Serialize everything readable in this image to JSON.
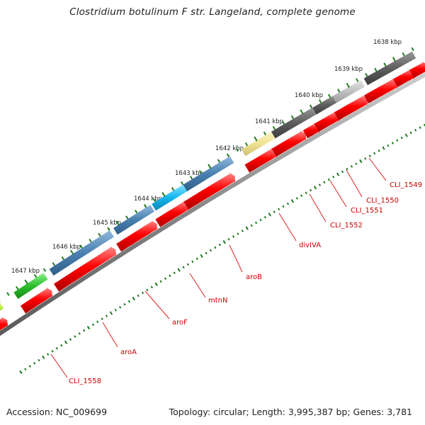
{
  "title": "Clostridium botulinum F str. Langeland, complete genome",
  "footer": {
    "accession": "Accession: NC_009699",
    "summary": "Topology: circular; Length: 3,995,387 bp; Genes: 3,781"
  },
  "colors": {
    "backbone": "#8a8a8a",
    "tick": "#1f7a1f",
    "label_line": "#e02020",
    "label_text": "#cc0000",
    "kbp_text": "#222222"
  },
  "ticks": [
    {
      "label": "1638 kbp"
    },
    {
      "label": "1639 kbp"
    },
    {
      "label": "1640 kbp"
    },
    {
      "label": "1641 kbp"
    },
    {
      "label": "1642 kbp"
    },
    {
      "label": "1643 kbp"
    },
    {
      "label": "1644 kbp"
    },
    {
      "label": "1645 kbp"
    },
    {
      "label": "1646 kbp"
    },
    {
      "label": "1647 kbp"
    }
  ],
  "gene_labels": [
    {
      "name": "CLI_1549"
    },
    {
      "name": "CLI_1550"
    },
    {
      "name": "CLI_1551"
    },
    {
      "name": "CLI_1552"
    },
    {
      "name": "divIVA"
    },
    {
      "name": "aroB"
    },
    {
      "name": "mtnN"
    },
    {
      "name": "aroF"
    },
    {
      "name": "aroA"
    },
    {
      "name": "CLI_1558"
    }
  ]
}
